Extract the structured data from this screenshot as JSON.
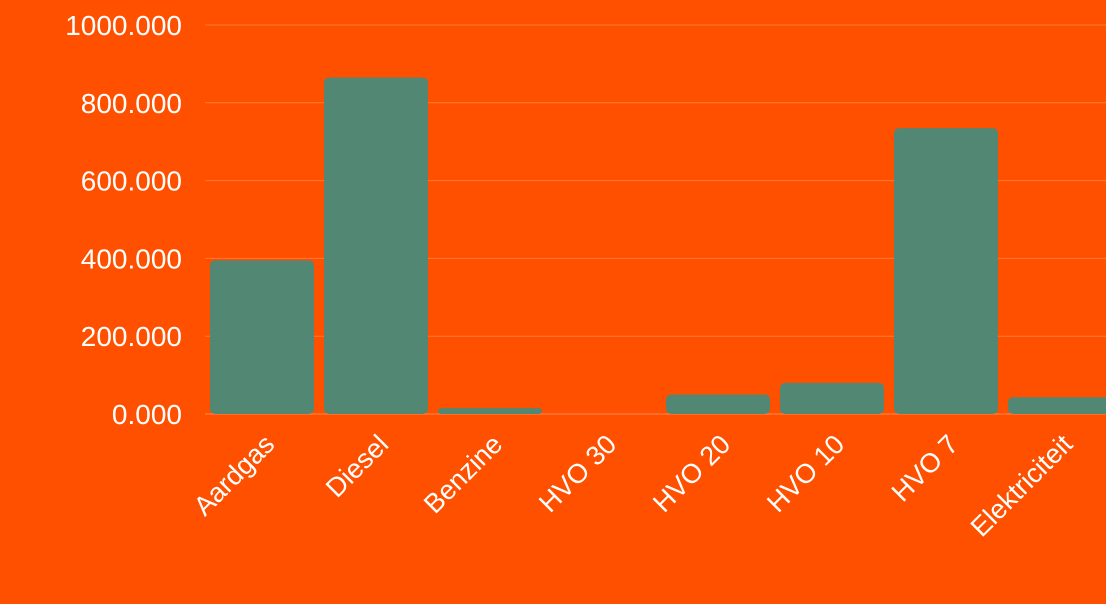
{
  "chart_data": {
    "type": "bar",
    "categories": [
      "Aardgas",
      "Diesel",
      "Benzine",
      "HVO 30",
      "HVO 20",
      "HVO 10",
      "HVO 7",
      "Elektriciteit"
    ],
    "values": [
      395,
      865,
      15,
      0,
      50,
      80,
      735,
      43
    ],
    "ylim": [
      0,
      1000
    ],
    "yticks": [
      0,
      200,
      400,
      600,
      800,
      1000
    ],
    "ytick_labels": [
      "0.000",
      "200.000",
      "400.000",
      "600.000",
      "800.000",
      "1000.000"
    ],
    "grid": true,
    "legend": "none",
    "title": "",
    "xlabel": "",
    "ylabel": ""
  },
  "colors": {
    "background": "#FF5000",
    "bar": "#528774",
    "text": "#FFFFFF",
    "grid": "#FF7A3D"
  }
}
